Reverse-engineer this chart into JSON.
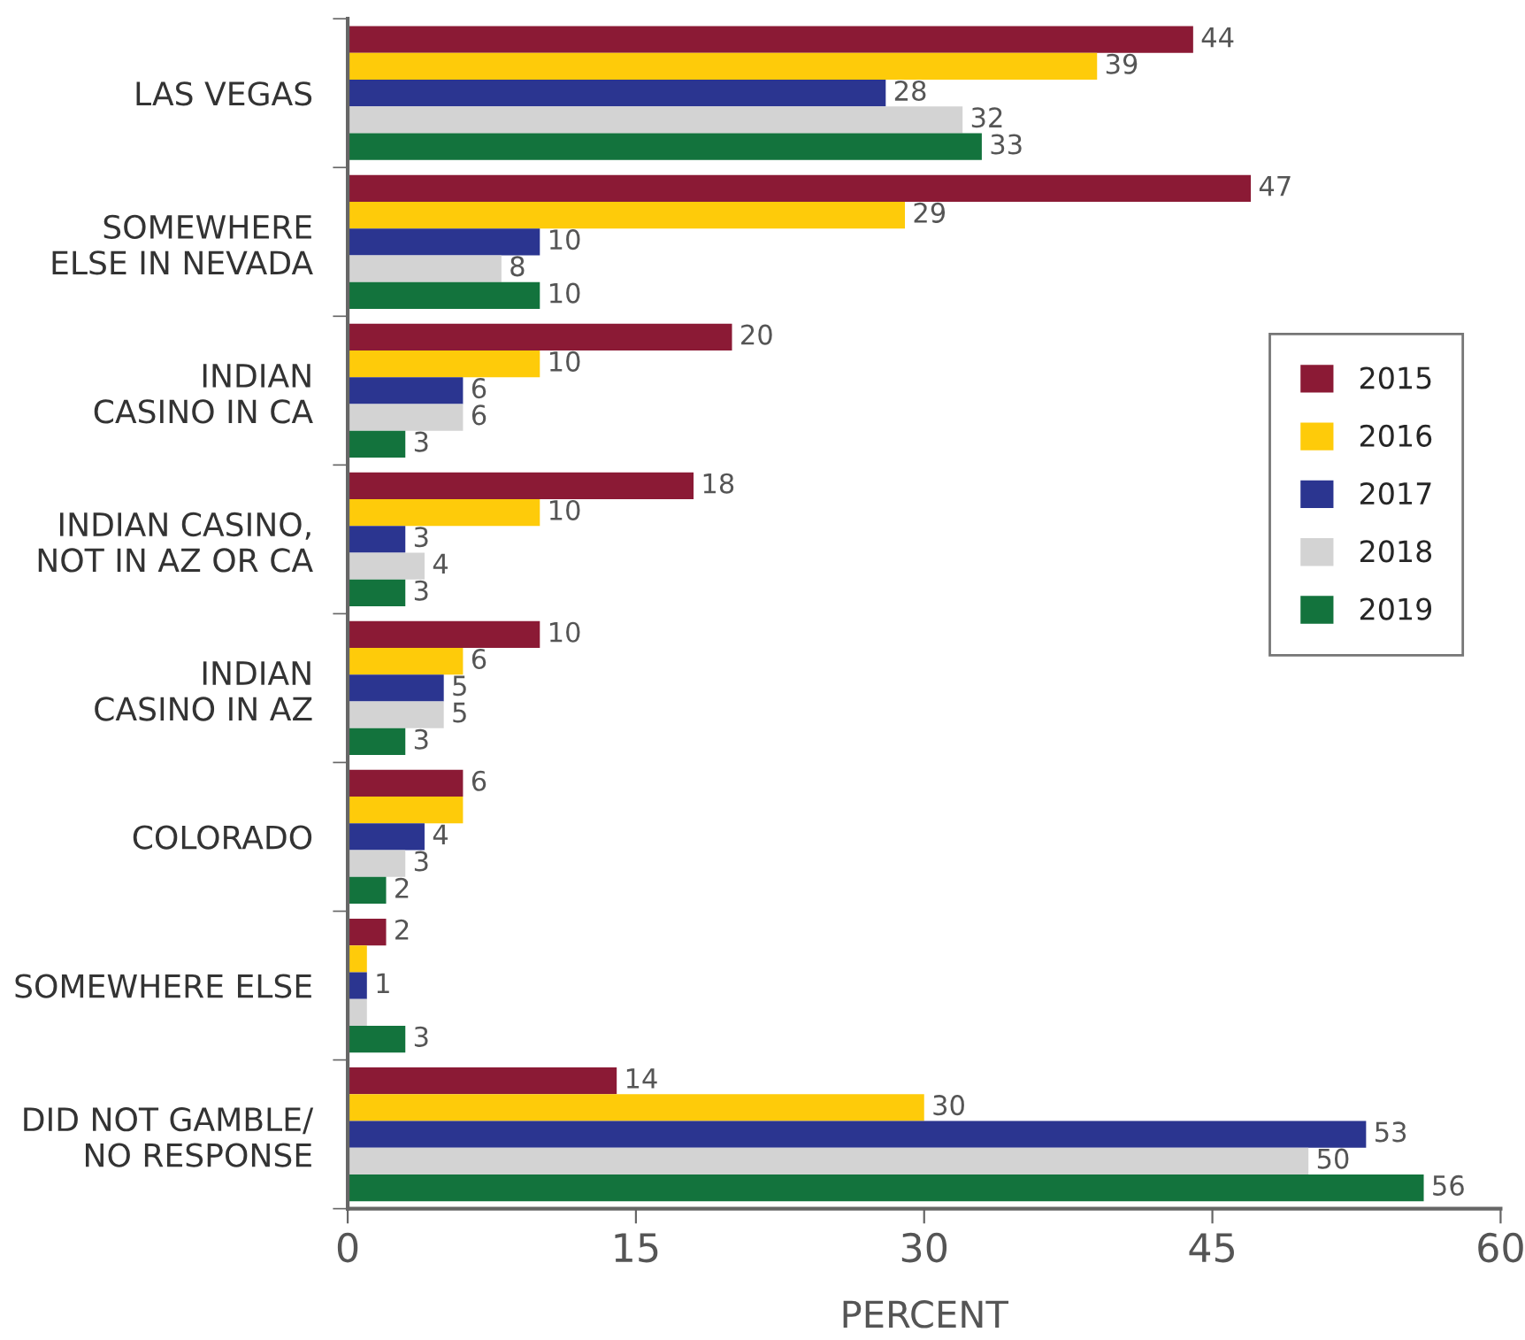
{
  "chart_data": {
    "type": "bar",
    "orientation": "horizontal",
    "xlabel": "PERCENT",
    "categories": [
      "LAS VEGAS",
      "SOMEWHERE\nELSE IN NEVADA",
      "INDIAN\nCASINO IN CA",
      "INDIAN CASINO,\nNOT IN AZ OR CA",
      "INDIAN\nCASINO IN AZ",
      "COLORADO",
      "SOMEWHERE ELSE",
      "DID NOT GAMBLE/\nNO RESPONSE"
    ],
    "series": [
      {
        "name": "2015",
        "color": "#8b1a35",
        "values": [
          44,
          47,
          20,
          18,
          10,
          6,
          2,
          14
        ],
        "value_labels": [
          "44",
          "47",
          "20",
          "18",
          "10",
          "6",
          "2",
          "14"
        ]
      },
      {
        "name": "2016",
        "color": "#fecb0a",
        "values": [
          39,
          29,
          10,
          10,
          6,
          6,
          1,
          30
        ],
        "value_labels": [
          "39",
          "29",
          "10",
          "10",
          "6",
          null,
          null,
          "30"
        ]
      },
      {
        "name": "2017",
        "color": "#2b3590",
        "values": [
          28,
          10,
          6,
          3,
          5,
          4,
          1,
          53
        ],
        "value_labels": [
          "28",
          "10",
          "6",
          "3",
          "5",
          "4",
          "1",
          "53"
        ]
      },
      {
        "name": "2018",
        "color": "#d3d3d3",
        "values": [
          32,
          8,
          6,
          4,
          5,
          3,
          1,
          50
        ],
        "value_labels": [
          "32",
          "8",
          "6",
          "4",
          "5",
          "3",
          null,
          "50"
        ]
      },
      {
        "name": "2019",
        "color": "#13733d",
        "values": [
          33,
          10,
          3,
          3,
          3,
          2,
          3,
          56
        ],
        "value_labels": [
          "33",
          "10",
          "3",
          "3",
          "3",
          "2",
          "3",
          "56"
        ]
      }
    ],
    "xlim": [
      0,
      60
    ],
    "xticks": [
      0,
      15,
      30,
      45,
      60
    ],
    "grid": false,
    "legend": "right"
  }
}
